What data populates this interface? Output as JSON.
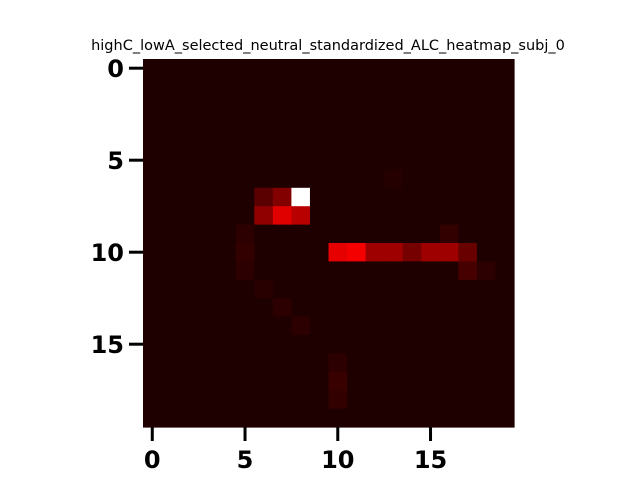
{
  "chart_data": {
    "type": "heatmap",
    "title": "highC_lowA_selected_neutral_standardized_ALC_heatmap_subj_0",
    "xlabel": "",
    "ylabel": "",
    "rows": 20,
    "cols": 20,
    "colormap": "hot",
    "x_ticks": [
      0,
      5,
      10,
      15
    ],
    "y_ticks": [
      0,
      5,
      10,
      15
    ],
    "x_tick_labels": [
      "0",
      "5",
      "10",
      "15"
    ],
    "y_tick_labels": [
      "0",
      "5",
      "10",
      "15"
    ],
    "grid": false,
    "background_value": 0.03,
    "cells": [
      {
        "row": 7,
        "col": 6,
        "value": 0.12
      },
      {
        "row": 7,
        "col": 7,
        "value": 0.18
      },
      {
        "row": 7,
        "col": 8,
        "value": 1.0
      },
      {
        "row": 8,
        "col": 6,
        "value": 0.2
      },
      {
        "row": 8,
        "col": 7,
        "value": 0.32
      },
      {
        "row": 8,
        "col": 8,
        "value": 0.26
      },
      {
        "row": 9,
        "col": 5,
        "value": 0.05
      },
      {
        "row": 9,
        "col": 16,
        "value": 0.06
      },
      {
        "row": 10,
        "col": 5,
        "value": 0.06
      },
      {
        "row": 10,
        "col": 10,
        "value": 0.33
      },
      {
        "row": 10,
        "col": 11,
        "value": 0.35
      },
      {
        "row": 10,
        "col": 12,
        "value": 0.22
      },
      {
        "row": 10,
        "col": 13,
        "value": 0.22
      },
      {
        "row": 10,
        "col": 14,
        "value": 0.16
      },
      {
        "row": 10,
        "col": 15,
        "value": 0.22
      },
      {
        "row": 10,
        "col": 16,
        "value": 0.22
      },
      {
        "row": 10,
        "col": 17,
        "value": 0.14
      },
      {
        "row": 11,
        "col": 5,
        "value": 0.05
      },
      {
        "row": 11,
        "col": 17,
        "value": 0.09
      },
      {
        "row": 11,
        "col": 18,
        "value": 0.05
      },
      {
        "row": 12,
        "col": 6,
        "value": 0.045
      },
      {
        "row": 13,
        "col": 7,
        "value": 0.05
      },
      {
        "row": 14,
        "col": 8,
        "value": 0.05
      },
      {
        "row": 16,
        "col": 10,
        "value": 0.05
      },
      {
        "row": 17,
        "col": 10,
        "value": 0.07
      },
      {
        "row": 18,
        "col": 10,
        "value": 0.06
      },
      {
        "row": 6,
        "col": 13,
        "value": 0.04
      }
    ]
  }
}
